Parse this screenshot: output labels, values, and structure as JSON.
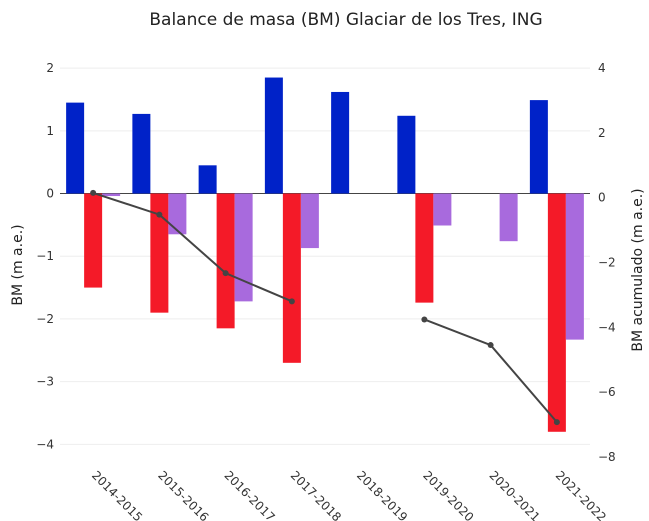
{
  "chart_data": {
    "type": "bar",
    "title": "Balance de masa (BM) Glaciar de los Tres, ING",
    "ylabel": "BM (m a.e.)",
    "y2label": "BM acumulado (m a.e.)",
    "xlabel": "",
    "categories": [
      "2014-2015",
      "2015-2016",
      "2016-2017",
      "2017-2018",
      "2018-2019",
      "2019-2020",
      "2020-2021",
      "2021-2022"
    ],
    "ylim": [
      -4.25,
      2.05
    ],
    "y2lim": [
      -8.1,
      4.1
    ],
    "yticks": [
      2,
      1,
      0,
      -1,
      -2,
      -3,
      -4
    ],
    "y2ticks": [
      4,
      2,
      0,
      -2,
      -4,
      -6,
      -8
    ],
    "legend": "none",
    "grid": true,
    "series": [
      {
        "key": "winter",
        "values": [
          1.45,
          1.27,
          0.45,
          1.85,
          1.62,
          1.24,
          null,
          1.49
        ],
        "color": "#0022c8",
        "axis": "y"
      },
      {
        "key": "summer",
        "values": [
          -1.5,
          -1.9,
          -2.15,
          -2.7,
          null,
          -1.74,
          null,
          -3.8
        ],
        "color": "#f41a28",
        "axis": "y"
      },
      {
        "key": "annual",
        "values": [
          -0.04,
          -0.65,
          -1.72,
          -0.87,
          null,
          -0.51,
          -0.76,
          -2.33
        ],
        "color": "#a86add",
        "axis": "y"
      },
      {
        "key": "cumulative",
        "type": "line",
        "values": [
          0.15,
          -0.52,
          -2.33,
          -3.2,
          null,
          -3.76,
          -4.55,
          -6.93
        ],
        "color": "#444444",
        "axis": "y2"
      }
    ]
  }
}
